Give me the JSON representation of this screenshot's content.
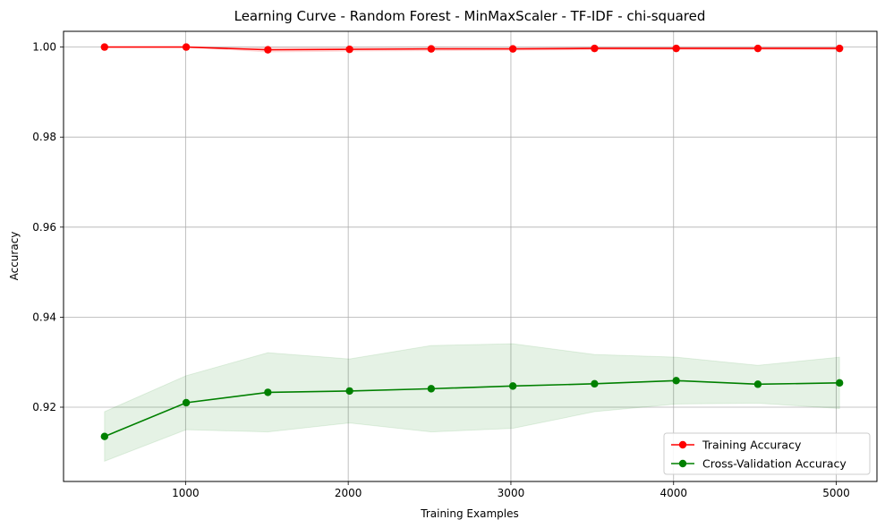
{
  "chart_data": {
    "type": "line",
    "title": "Learning Curve - Random Forest - MinMaxScaler - TF-IDF - chi-squared",
    "xlabel": "Training Examples",
    "ylabel": "Accuracy",
    "xlim": [
      250,
      5250
    ],
    "ylim": [
      0.9035,
      1.0035
    ],
    "xticks": [
      1000,
      2000,
      3000,
      4000,
      5000
    ],
    "xtick_labels": [
      "1000",
      "2000",
      "3000",
      "4000",
      "5000"
    ],
    "yticks": [
      0.92,
      0.94,
      0.96,
      0.98,
      1.0
    ],
    "ytick_labels": [
      "0.92",
      "0.94",
      "0.96",
      "0.98",
      "1.00"
    ],
    "grid": true,
    "legend_position": "bottom-right",
    "x": [
      502,
      1004,
      1506,
      2008,
      2510,
      3012,
      3514,
      4016,
      4518,
      5020
    ],
    "series": [
      {
        "name": "Training Accuracy",
        "color": "#ff0000",
        "values": [
          1.0,
          1.0,
          0.9994,
          0.9995,
          0.9996,
          0.9996,
          0.9997,
          0.9997,
          0.9997,
          0.9997
        ],
        "band_lower": [
          1.0,
          1.0,
          0.9989,
          0.9991,
          0.9992,
          0.9993,
          0.9994,
          0.9994,
          0.9994,
          0.9994
        ],
        "band_upper": [
          1.0,
          1.0,
          0.9999,
          0.9999,
          1.0,
          0.9999,
          1.0,
          1.0,
          1.0,
          1.0
        ]
      },
      {
        "name": "Cross-Validation Accuracy",
        "color": "#008000",
        "values": [
          0.9135,
          0.921,
          0.9233,
          0.9236,
          0.9241,
          0.9247,
          0.9252,
          0.9259,
          0.9251,
          0.9254
        ],
        "band_lower": [
          0.908,
          0.915,
          0.9145,
          0.9165,
          0.9145,
          0.9153,
          0.919,
          0.9207,
          0.9209,
          0.9197
        ],
        "band_upper": [
          0.919,
          0.927,
          0.9321,
          0.9307,
          0.9337,
          0.9341,
          0.9317,
          0.9311,
          0.9293,
          0.9311
        ]
      }
    ]
  }
}
